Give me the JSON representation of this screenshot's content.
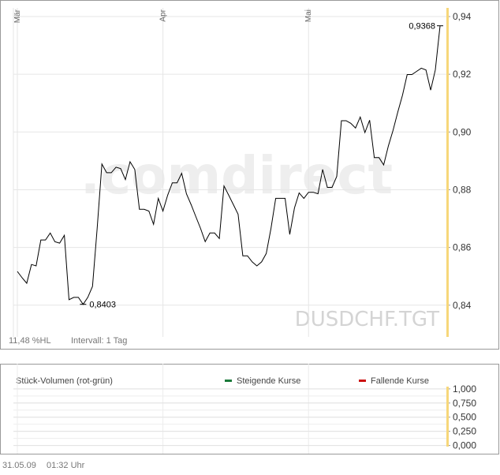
{
  "chart_data": [
    {
      "type": "line",
      "symbol": "DUSDCHF.TGT",
      "watermark": ".comdirect",
      "range_label": "11,48 %HL",
      "interval_label": "Intervall: 1 Tag",
      "color": "#000000",
      "axis_color": "#f7d77a",
      "grid": true,
      "categories": [
        "Mär",
        null,
        null,
        null,
        null,
        null,
        null,
        null,
        null,
        null,
        null,
        null,
        null,
        null,
        null,
        null,
        null,
        null,
        null,
        null,
        null,
        null,
        null,
        null,
        null,
        null,
        null,
        null,
        null,
        null,
        null,
        "Apr",
        null,
        null,
        null,
        null,
        null,
        null,
        null,
        null,
        null,
        null,
        null,
        null,
        null,
        null,
        null,
        null,
        null,
        null,
        null,
        null,
        null,
        null,
        null,
        null,
        null,
        null,
        null,
        null,
        null,
        null,
        "Mai",
        null,
        null,
        null,
        null,
        null,
        null,
        null,
        null,
        null,
        null,
        null,
        null,
        null,
        null,
        null,
        null,
        null,
        null,
        null,
        null,
        null,
        null,
        null,
        null,
        null,
        null,
        null,
        null
      ],
      "values": [
        0.8517,
        0.8495,
        0.8476,
        0.8541,
        0.8536,
        0.8626,
        0.8626,
        0.865,
        0.862,
        0.8615,
        0.8642,
        0.8419,
        0.8427,
        0.8427,
        0.8403,
        0.8427,
        0.8465,
        0.8666,
        0.8889,
        0.8859,
        0.8859,
        0.8878,
        0.8873,
        0.8835,
        0.8897,
        0.887,
        0.8732,
        0.8732,
        0.8726,
        0.868,
        0.877,
        0.8726,
        0.8781,
        0.8824,
        0.8824,
        0.8857,
        0.8786,
        0.8748,
        0.8707,
        0.8666,
        0.862,
        0.865,
        0.865,
        0.8631,
        0.8813,
        0.8781,
        0.8748,
        0.8715,
        0.8571,
        0.8571,
        0.855,
        0.8536,
        0.855,
        0.8579,
        0.8666,
        0.877,
        0.877,
        0.877,
        0.8645,
        0.8737,
        0.8789,
        0.877,
        0.8791,
        0.8791,
        0.8786,
        0.887,
        0.8808,
        0.8808,
        0.8846,
        0.9039,
        0.9039,
        0.903,
        0.9014,
        0.9052,
        0.8998,
        0.9041,
        0.8911,
        0.8911,
        0.8886,
        0.8952,
        0.9006,
        0.9069,
        0.9128,
        0.9199,
        0.9199,
        0.921,
        0.9221,
        0.9215,
        0.9145,
        0.9215,
        0.9368
      ],
      "value_labels": [
        null,
        null,
        null,
        null,
        null,
        null,
        null,
        null,
        null,
        null,
        null,
        null,
        null,
        null,
        "0,8403",
        null,
        null,
        null,
        null,
        null,
        null,
        null,
        null,
        null,
        null,
        null,
        null,
        null,
        null,
        null,
        null,
        null,
        null,
        null,
        null,
        null,
        null,
        null,
        null,
        null,
        null,
        null,
        null,
        null,
        null,
        null,
        null,
        null,
        null,
        null,
        null,
        null,
        null,
        null,
        null,
        null,
        null,
        null,
        null,
        null,
        null,
        null,
        null,
        null,
        null,
        null,
        null,
        null,
        null,
        null,
        null,
        null,
        null,
        null,
        null,
        null,
        null,
        null,
        null,
        null,
        null,
        null,
        null,
        null,
        null,
        null,
        null,
        null,
        null,
        null,
        "0,9368"
      ],
      "ylim": [
        0.829,
        0.943
      ],
      "yticks": [
        {
          "value": 0.84,
          "label": "0,84"
        },
        {
          "value": 0.86,
          "label": "0,86"
        },
        {
          "value": 0.88,
          "label": "0,88"
        },
        {
          "value": 0.9,
          "label": "0,90"
        },
        {
          "value": 0.92,
          "label": "0,92"
        },
        {
          "value": 0.94,
          "label": "0,94"
        }
      ]
    },
    {
      "type": "bar",
      "title": "Stück-Volumen (rot-grün)",
      "axis_color": "#f7d77a",
      "grid": true,
      "series": [
        {
          "name": "Steigende Kurse",
          "color": "#1a7a3a"
        },
        {
          "name": "Fallende Kurse",
          "color": "#cc1111"
        }
      ],
      "ylim": [
        -0.02,
        1.04
      ],
      "yticks": [
        {
          "value": 0,
          "label": "0,000"
        },
        {
          "value": 0.25,
          "label": "0,250"
        },
        {
          "value": 0.5,
          "label": "0,500"
        },
        {
          "value": 0.75,
          "label": "0,750"
        },
        {
          "value": 1,
          "label": "1,000"
        }
      ]
    }
  ],
  "footer": {
    "date": "31.05.09",
    "time": "01:32 Uhr"
  }
}
